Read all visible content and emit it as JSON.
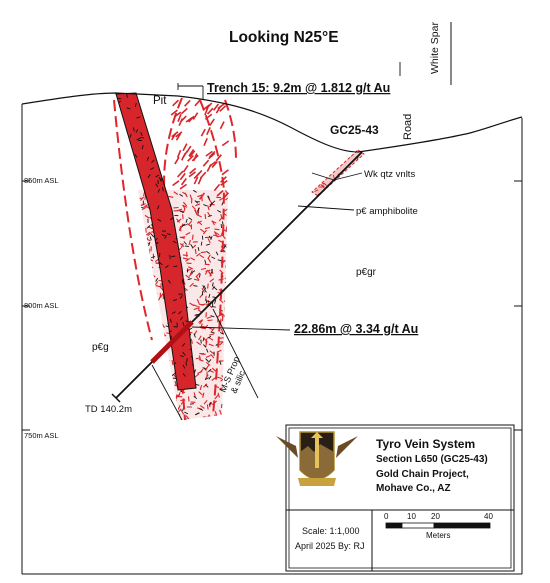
{
  "header": {
    "title": "Looking N25°E",
    "side_label": "White Spar",
    "trench_label": "Trench 15:  9.2m @ 1.812 g/t Au"
  },
  "surface": {
    "pit_label": "Pit",
    "hole_label": "GC25-43",
    "road_label": "Road"
  },
  "elevations": {
    "e850": "850m ASL",
    "e800": "800m ASL",
    "e750": "750m ASL"
  },
  "geology": {
    "qtz_veinlets": "Wk qtz vnlts",
    "amphibolite": "p€ amphibolite",
    "granite": "p€gr",
    "gneiss": "p€g",
    "alteration_line1": "M-S Prop",
    "alteration_line2": "& silic"
  },
  "intercept": {
    "label": "22.86m @ 3.34 g/t Au"
  },
  "drillhole": {
    "total_depth": "TD 140.2m"
  },
  "legend": {
    "title": "Tyro Vein System",
    "section": "Section L650 (GC25-43)",
    "project": "Gold Chain Project,",
    "location": "Mohave Co., AZ",
    "scale": "Scale: 1:1,000",
    "date_author": "April 2025   By: RJ",
    "scale_ticks": [
      "0",
      "10",
      "20",
      "40"
    ],
    "scale_unit": "Meters"
  },
  "colors": {
    "vein_red": "#d6262b",
    "alteration_red": "#e0262b",
    "fill_pink": "#f3c9c8",
    "ink": "#111111"
  }
}
